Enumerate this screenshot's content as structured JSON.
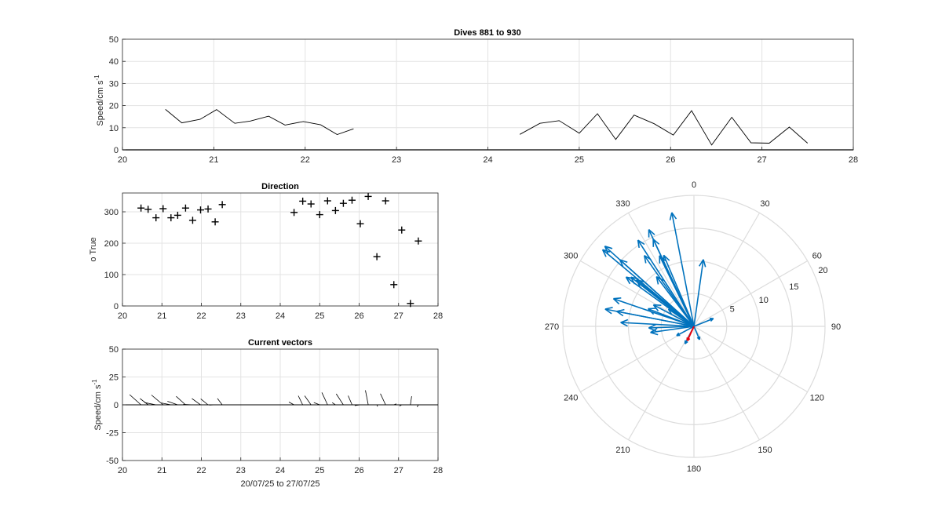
{
  "chart_data": [
    {
      "type": "line",
      "title": "Dives 881 to 930",
      "ylabel": "Speed/cm s",
      "ylabel_sup": "-1",
      "xlim": [
        20,
        28
      ],
      "ylim": [
        0,
        50
      ],
      "xticks": [
        "20",
        "21",
        "22",
        "23",
        "24",
        "25",
        "26",
        "27",
        "28"
      ],
      "yticks": [
        "0",
        "10",
        "20",
        "30",
        "40",
        "50"
      ],
      "grid": true,
      "segments": [
        {
          "x": [
            20.47,
            20.65,
            20.85,
            21.03,
            21.23,
            21.4,
            21.6,
            21.78,
            21.98,
            22.17,
            22.35,
            22.53
          ],
          "y": [
            18.3,
            12.2,
            13.8,
            18.2,
            12.0,
            13.0,
            15.2,
            11.2,
            12.8,
            11.3,
            6.9,
            9.5
          ]
        },
        {
          "x": [
            24.35,
            24.57,
            24.78,
            25.0,
            25.2,
            25.4,
            25.6,
            25.82,
            26.03,
            26.23,
            26.45,
            26.67,
            26.88,
            27.08,
            27.3,
            27.5
          ],
          "y": [
            7.0,
            12.0,
            13.2,
            7.5,
            16.3,
            4.7,
            15.7,
            11.8,
            6.7,
            17.7,
            2.2,
            14.7,
            3.2,
            3.0,
            10.3,
            3.0
          ]
        }
      ]
    },
    {
      "type": "scatter",
      "title": "Direction",
      "ylabel": "o True",
      "xlim": [
        20,
        28
      ],
      "ylim": [
        0,
        360
      ],
      "xticks": [
        "20",
        "21",
        "22",
        "23",
        "24",
        "25",
        "26",
        "27",
        "28"
      ],
      "yticks": [
        "0",
        "100",
        "200",
        "300"
      ],
      "grid": true,
      "x": [
        20.47,
        20.65,
        20.85,
        21.03,
        21.23,
        21.4,
        21.6,
        21.78,
        21.98,
        22.17,
        22.35,
        22.53,
        24.35,
        24.57,
        24.78,
        25.0,
        25.2,
        25.4,
        25.6,
        25.82,
        26.03,
        26.23,
        26.45,
        26.67,
        26.88,
        27.08,
        27.3,
        27.5
      ],
      "y": [
        312,
        308,
        281,
        310,
        281,
        289,
        312,
        273,
        306,
        309,
        268,
        323,
        298,
        334,
        325,
        291,
        335,
        304,
        327,
        337,
        262,
        349,
        157,
        335,
        68,
        242,
        8,
        207
      ]
    },
    {
      "type": "quiver",
      "title": "Current vectors",
      "ylabel": "Speed/cm s",
      "ylabel_sup": "-1",
      "xlabel": "20/07/25 to 27/07/25",
      "xlim": [
        20,
        28
      ],
      "ylim": [
        -50,
        50
      ],
      "xticks": [
        "20",
        "21",
        "22",
        "23",
        "24",
        "25",
        "26",
        "27",
        "28"
      ],
      "yticks": [
        "-50",
        "-25",
        "0",
        "25",
        "50"
      ],
      "grid": true
    },
    {
      "type": "compass",
      "angle_labels": [
        "0",
        "30",
        "60",
        "90",
        "120",
        "150",
        "180",
        "210",
        "240",
        "270",
        "300",
        "330"
      ],
      "radial_ticks": [
        "5",
        "10",
        "15",
        "20"
      ],
      "rmax": 20,
      "arrow_color": "#0072BD",
      "mean_arrow_color": "#E8000B",
      "mean_vector": {
        "direction": 205,
        "speed": 2.4
      }
    }
  ]
}
